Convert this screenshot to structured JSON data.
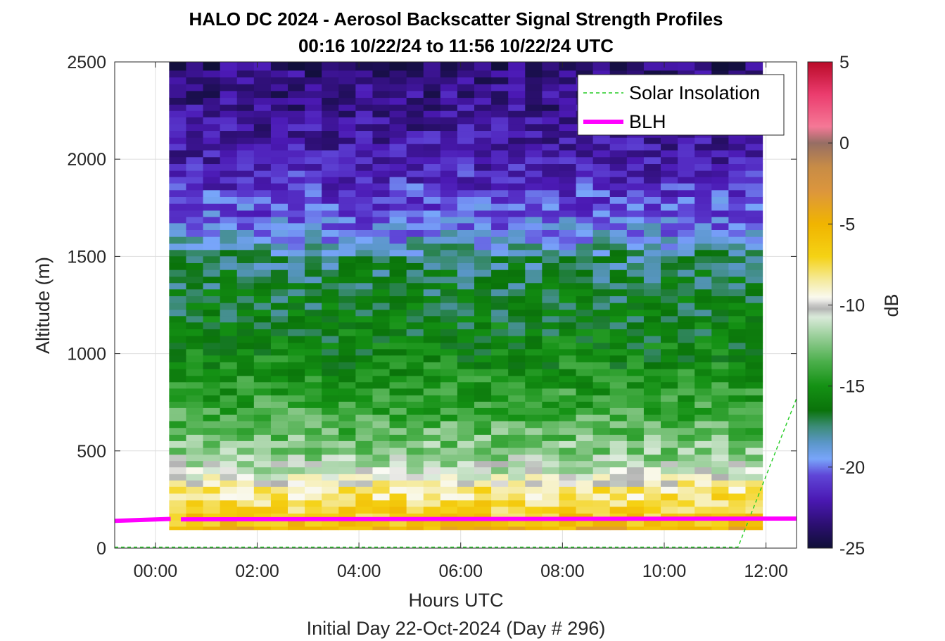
{
  "chart_data": {
    "type": "heatmap",
    "title": "HALO DC 2024 - Aerosol Backscatter Signal Strength Profiles",
    "subtitle": "00:16 10/22/24 to 11:56 10/22/24  UTC",
    "xlabel": "Hours UTC",
    "xlabel2": "Initial Day 22-Oct-2024 (Day # 296)",
    "ylabel": "Altitude (m)",
    "colorbar_label": "dB",
    "xlim": [
      -0.8,
      12.6
    ],
    "ylim": [
      0,
      2500
    ],
    "clim": [
      -25,
      5
    ],
    "x_ticks": [
      0,
      2,
      4,
      6,
      8,
      10,
      12
    ],
    "x_tick_labels": [
      "00:00",
      "02:00",
      "04:00",
      "06:00",
      "08:00",
      "10:00",
      "12:00"
    ],
    "y_ticks": [
      0,
      500,
      1000,
      1500,
      2000,
      2500
    ],
    "y_tick_labels": [
      "0",
      "500",
      "1000",
      "1500",
      "2000",
      "2500"
    ],
    "colorbar_ticks": [
      5,
      0,
      -5,
      -10,
      -15,
      -20,
      -25
    ],
    "colorbar_tick_labels": [
      "5",
      "0",
      "-5",
      "-10",
      "-15",
      "-20",
      "-25"
    ],
    "grid": true,
    "legend_position": "top-right",
    "time_start_hours": 0.27,
    "time_end_hours": 11.93,
    "column_count": 35,
    "altitude_levels_m": [
      95,
      130,
      160,
      200,
      230,
      265,
      300,
      335,
      365,
      400,
      435,
      465,
      500,
      535,
      570,
      600,
      640,
      670,
      705,
      740,
      770,
      805,
      840,
      870,
      905,
      940,
      975,
      1010,
      1040,
      1075,
      1110,
      1145,
      1180,
      1210,
      1245,
      1280,
      1315,
      1350,
      1380,
      1415,
      1450,
      1485,
      1520,
      1550,
      1585,
      1620,
      1655,
      1690,
      1720,
      1755,
      1790,
      1825,
      1860,
      1895,
      1925,
      1960,
      1995,
      2030,
      2065,
      2095,
      2130,
      2165,
      2200,
      2235,
      2265,
      2300,
      2335,
      2370,
      2405,
      2440,
      2475
    ],
    "profile_mean_db": [
      -5,
      -6,
      -6.5,
      -7,
      -7.5,
      -8,
      -8,
      -9,
      -10,
      -11,
      -11.5,
      -12,
      -12.3,
      -12.6,
      -12.9,
      -13.2,
      -13.5,
      -13.7,
      -13.9,
      -14.1,
      -14.3,
      -14.5,
      -14.7,
      -14.9,
      -15.1,
      -15.3,
      -15.5,
      -15.7,
      -15.8,
      -16,
      -16.1,
      -16.2,
      -16.3,
      -16.4,
      -16.5,
      -16.6,
      -16.7,
      -16.8,
      -16.9,
      -17,
      -17.3,
      -17.6,
      -18,
      -18.5,
      -19,
      -19.4,
      -19.8,
      -20.1,
      -20.4,
      -20.6,
      -20.8,
      -21,
      -21.2,
      -21.4,
      -21.6,
      -21.8,
      -22,
      -22.1,
      -22.2,
      -22.3,
      -22.4,
      -22.5,
      -22.6,
      -22.7,
      -22.8,
      -22.9,
      -23,
      -23.1,
      -23.2,
      -23.3,
      -23.4
    ],
    "series": [
      {
        "name": "Solar Insolation",
        "x": [
          -0.8,
          11.45,
          12.6
        ],
        "y": [
          5,
          5,
          770
        ]
      },
      {
        "name": "BLH",
        "x": [
          -0.8,
          0.3,
          0.5,
          12.6
        ],
        "y": [
          140,
          150,
          148,
          152
        ]
      }
    ]
  }
}
